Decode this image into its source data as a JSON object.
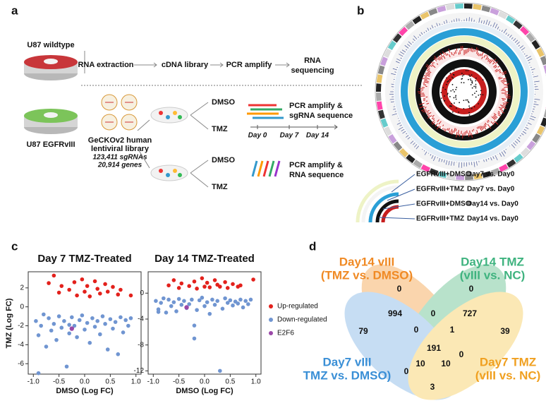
{
  "panel_a": {
    "label": "a",
    "wildtype": "U87 wildtype",
    "mutant": "U87 EGFRvIII",
    "rna_steps": [
      "RNA extraction",
      "cDNA library",
      "PCR amplify",
      "RNA",
      "sequencing"
    ],
    "library": [
      "GeCKOv2 human",
      "lentiviral library",
      "123,411 sgRNAs",
      "20,914 genes"
    ],
    "conditions": [
      "DMSO",
      "TMZ",
      "DMSO",
      "TMZ"
    ],
    "sgrna_seq": [
      "PCR amplify &",
      "sgRNA sequence"
    ],
    "timeline": [
      "Day 0",
      "Day 7",
      "Day 14"
    ],
    "rna_seq": [
      "PCR amplify &",
      "RNA sequence"
    ]
  },
  "panel_b": {
    "label": "b",
    "legend": [
      [
        "EGFRvIII+DMSO",
        "Day7 vs. Day0"
      ],
      [
        "EGFRvIII+TMZ",
        "Day7 vs. Day0"
      ],
      [
        "EGFRvIII+DMSO",
        "Day14 vs. Day0"
      ],
      [
        "EGFRvIII+TMZ",
        "Day14 vs. Day0"
      ]
    ]
  },
  "panel_c": {
    "label": "c",
    "ylabel": "TMZ (Log FC)"
  },
  "chart_data": [
    {
      "type": "scatter",
      "title": "Day 7 TMZ-Treated",
      "xlabel": "DMSO (Log FC)",
      "xlim": [
        -1.1,
        1.1
      ],
      "ylim": [
        -7.1,
        3.7
      ],
      "xticks": [
        {
          "value": -1,
          "label": "-1.0"
        },
        -0.5,
        {
          "value": 0,
          "label": "0.0"
        },
        0.5,
        {
          "value": 1,
          "label": "1.0"
        }
      ],
      "yticks": [
        2,
        0,
        -2,
        -4,
        -6
      ],
      "series": [
        {
          "name": "Up-regulated",
          "color": "#e3211c",
          "x": [
            -0.7,
            -0.6,
            -0.5,
            -0.45,
            -0.3,
            -0.2,
            -0.15,
            -0.05,
            0,
            0.05,
            0.1,
            0.2,
            0.25,
            0.3,
            0.4,
            0.45,
            0.55,
            0.65,
            0.7,
            0.9
          ],
          "values": [
            2.5,
            3.3,
            1.5,
            2.2,
            1.8,
            2.6,
            1.2,
            2.9,
            1.6,
            2.2,
            1.1,
            2.7,
            1.9,
            1.4,
            2.4,
            1.6,
            2.1,
            1.3,
            1.8,
            1.2
          ]
        },
        {
          "name": "Down-regulated",
          "color": "#7095d1",
          "x": [
            -0.95,
            -0.9,
            -0.85,
            -0.8,
            -0.75,
            -0.7,
            -0.65,
            -0.6,
            -0.55,
            -0.5,
            -0.45,
            -0.4,
            -0.35,
            -0.3,
            -0.25,
            -0.2,
            -0.15,
            -0.1,
            -0.05,
            0,
            0.05,
            0.1,
            0.15,
            0.2,
            0.25,
            0.3,
            0.35,
            0.4,
            0.45,
            0.5,
            0.55,
            0.6,
            0.65,
            0.7,
            0.75,
            0.8,
            0.85,
            0.9,
            -0.9,
            -0.3
          ],
          "values": [
            -1.5,
            -3,
            -2,
            -0.8,
            -4.2,
            -1.2,
            -2.5,
            -1.8,
            -3.5,
            -1,
            -2.2,
            -1.5,
            -6.3,
            -2.8,
            -1.1,
            -2,
            -3.2,
            -1.4,
            -0.9,
            -2.4,
            -1.7,
            -3.8,
            -1.2,
            -2.1,
            -1.5,
            -2.9,
            -1,
            -1.8,
            -4.5,
            -1.3,
            -2.3,
            -1.6,
            -5,
            -1.1,
            -2.7,
            -1.4,
            -2,
            -1.2,
            -7,
            -1.9
          ]
        },
        {
          "name": "E2F6",
          "color": "#9b48a8",
          "x": [
            -0.25
          ],
          "values": [
            -2.3
          ]
        }
      ]
    },
    {
      "type": "scatter",
      "title": "Day 14 TMZ-Treated",
      "xlabel": "DMSO (Log FC)",
      "xlim": [
        -1.1,
        1.1
      ],
      "ylim": [
        -12.5,
        3.3
      ],
      "xticks": [
        {
          "value": -1,
          "label": "-1.0"
        },
        -0.5,
        {
          "value": 0,
          "label": "0.0"
        },
        0.5,
        {
          "value": 1,
          "label": "1.0"
        }
      ],
      "yticks": [
        0,
        -4,
        -8,
        -12
      ],
      "series": [
        {
          "name": "Up-regulated",
          "color": "#e3211c",
          "x": [
            -0.7,
            -0.6,
            -0.5,
            -0.45,
            -0.3,
            -0.2,
            -0.15,
            -0.05,
            0,
            0.05,
            0.1,
            0.2,
            0.25,
            0.3,
            0.4,
            0.45,
            0.55,
            0.65,
            0.7,
            0.95
          ],
          "values": [
            1.2,
            2,
            0.8,
            1.5,
            1.1,
            1.8,
            0.7,
            2.3,
            1,
            1.6,
            0.9,
            2,
            1.3,
            1,
            1.7,
            0.8,
            1.4,
            1,
            1.2,
            2.1
          ]
        },
        {
          "name": "Down-regulated",
          "color": "#7095d1",
          "x": [
            -0.95,
            -0.9,
            -0.85,
            -0.8,
            -0.75,
            -0.7,
            -0.65,
            -0.6,
            -0.55,
            -0.5,
            -0.45,
            -0.4,
            -0.35,
            -0.2,
            -0.25,
            -0.3,
            -0.15,
            -0.1,
            -0.05,
            0,
            0.05,
            0.1,
            0.15,
            0.2,
            0.25,
            0.35,
            0.4,
            0.45,
            0.3,
            0.5,
            0.55,
            0.6,
            -0.2,
            0.7,
            0.75,
            0.8,
            0.85,
            0.9,
            -0.9,
            0.65
          ],
          "values": [
            -1.2,
            -2.5,
            -1.5,
            -0.8,
            -3,
            -1,
            -2,
            -1.4,
            -2.8,
            -0.9,
            -1.8,
            -1.2,
            -2.3,
            -5,
            -1,
            -1.7,
            -2.6,
            -1.1,
            -0.7,
            -2,
            -1.4,
            -3.2,
            -1,
            -1.8,
            -1.2,
            -2.4,
            -0.8,
            -1.5,
            -12,
            -1.1,
            -1.9,
            -1.3,
            -7,
            -1,
            -2.2,
            -1.2,
            -1.7,
            -1,
            -2.9,
            -1.6
          ]
        },
        {
          "name": "E2F6",
          "color": "#9b48a8",
          "x": [
            -0.35
          ],
          "values": [
            -2.2
          ]
        }
      ]
    }
  ],
  "panel_d": {
    "label": "d",
    "sets": [
      [
        "Day14 vIII",
        "(TMZ vs. DMSO)"
      ],
      [
        "Day14 TMZ",
        "(vIII vs. NC)"
      ],
      [
        "Day7 vIII",
        "TMZ vs. DMSO)"
      ],
      [
        "Day7 TMZ",
        "(vIII vs. NC)"
      ]
    ],
    "regions": [
      "0",
      "0",
      "994",
      "0",
      "727",
      "79",
      "39",
      "0",
      "1",
      "191",
      "0",
      "10",
      "10",
      "0",
      "3"
    ]
  }
}
